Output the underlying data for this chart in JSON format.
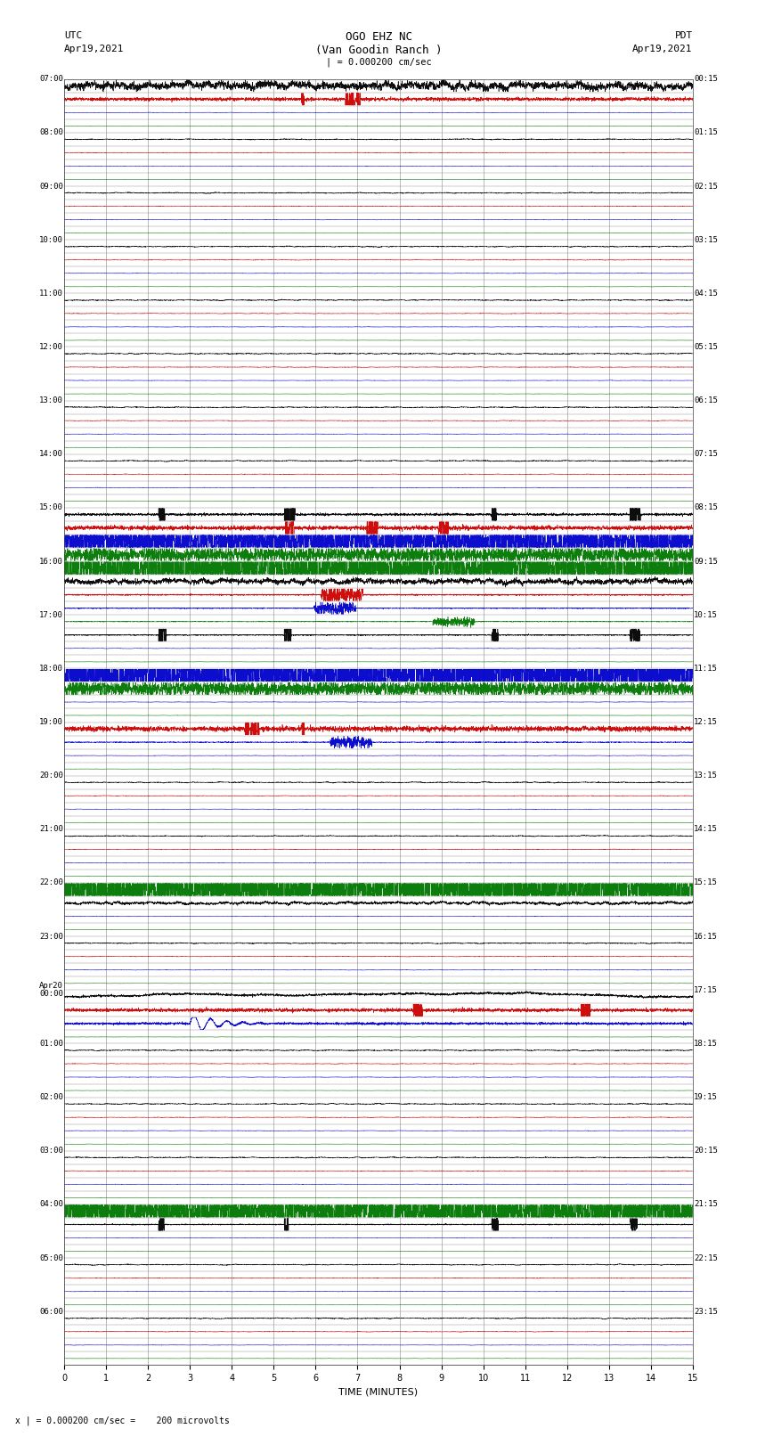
{
  "title_line1": "OGO EHZ NC",
  "title_line2": "(Van Goodin Ranch )",
  "title_line3": "| = 0.000200 cm/sec",
  "left_label_top": "UTC",
  "left_label_date": "Apr19,2021",
  "right_label_top": "PDT",
  "right_label_date": "Apr19,2021",
  "xlabel": "TIME (MINUTES)",
  "bottom_note": "x | = 0.000200 cm/sec =    200 microvolts",
  "utc_times": [
    "07:00",
    "08:00",
    "09:00",
    "10:00",
    "11:00",
    "12:00",
    "13:00",
    "14:00",
    "15:00",
    "16:00",
    "17:00",
    "18:00",
    "19:00",
    "20:00",
    "21:00",
    "22:00",
    "23:00",
    "Apr20\n00:00",
    "01:00",
    "02:00",
    "03:00",
    "04:00",
    "05:00",
    "06:00"
  ],
  "pdt_times": [
    "00:15",
    "01:15",
    "02:15",
    "03:15",
    "04:15",
    "05:15",
    "06:15",
    "07:15",
    "08:15",
    "09:15",
    "10:15",
    "11:15",
    "12:15",
    "13:15",
    "14:15",
    "15:15",
    "16:15",
    "17:15",
    "18:15",
    "19:15",
    "20:15",
    "21:15",
    "22:15",
    "23:15"
  ],
  "n_rows": 48,
  "x_min": 0,
  "x_max": 15,
  "x_ticks": [
    0,
    1,
    2,
    3,
    4,
    5,
    6,
    7,
    8,
    9,
    10,
    11,
    12,
    13,
    14,
    15
  ],
  "bg_color": "#ffffff",
  "grid_color": "#888888",
  "colors": {
    "black": "#000000",
    "red": "#cc0000",
    "blue": "#0000cc",
    "green": "#007700"
  },
  "fig_width": 8.5,
  "fig_height": 16.13,
  "dpi": 100
}
